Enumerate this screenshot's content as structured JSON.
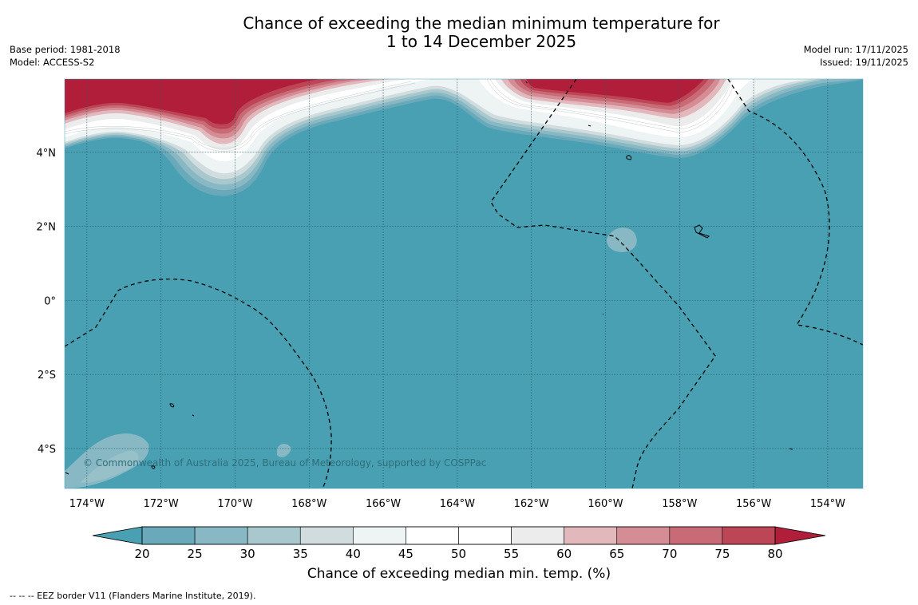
{
  "title_line1": "Chance of exceeding the median minimum temperature for",
  "title_line2": "1 to 14 December 2025",
  "base_period": "Base period: 1981-2018",
  "model": "Model: ACCESS-S2",
  "model_run": "Model run: 17/11/2025",
  "issued": "Issued: 19/11/2025",
  "copyright": "© Commonwealth of Australia 2025, Bureau of Meteorology, supported by COSPPac",
  "lat_labels": [
    "4°N",
    "2°N",
    "0°",
    "2°S",
    "4°S"
  ],
  "lat_values": [
    4,
    2,
    0,
    -2,
    -4
  ],
  "lon_labels": [
    "174°W",
    "172°W",
    "170°W",
    "168°W",
    "166°W",
    "164°W",
    "162°W",
    "160°W",
    "158°W",
    "156°W",
    "154°W"
  ],
  "lon_values": [
    -174,
    -172,
    -170,
    -168,
    -166,
    -164,
    -162,
    -160,
    -158,
    -156,
    -154
  ],
  "colorbar": {
    "title": "Chance of exceeding median min. temp. (%)",
    "ticks": [
      "20",
      "25",
      "30",
      "35",
      "40",
      "45",
      "50",
      "55",
      "60",
      "65",
      "70",
      "75",
      "80"
    ],
    "colors": {
      "below_20": "#48a0b2",
      "20_25": "#69a9b9",
      "25_30": "#87b8c4",
      "30_35": "#a9c8ce",
      "35_40": "#d0dcde",
      "40_45": "#eef3f4",
      "45_50": "#ffffff",
      "50_55": "#ffffff",
      "55_60": "#ececec",
      "60_65": "#e2b8bd",
      "65_70": "#d48c95",
      "70_75": "#c96b77",
      "75_80": "#bc4656",
      "above_80": "#b11e3a"
    }
  },
  "footer": "--  --  -- EEZ border V11 (Flanders Marine Institute, 2019)."
}
